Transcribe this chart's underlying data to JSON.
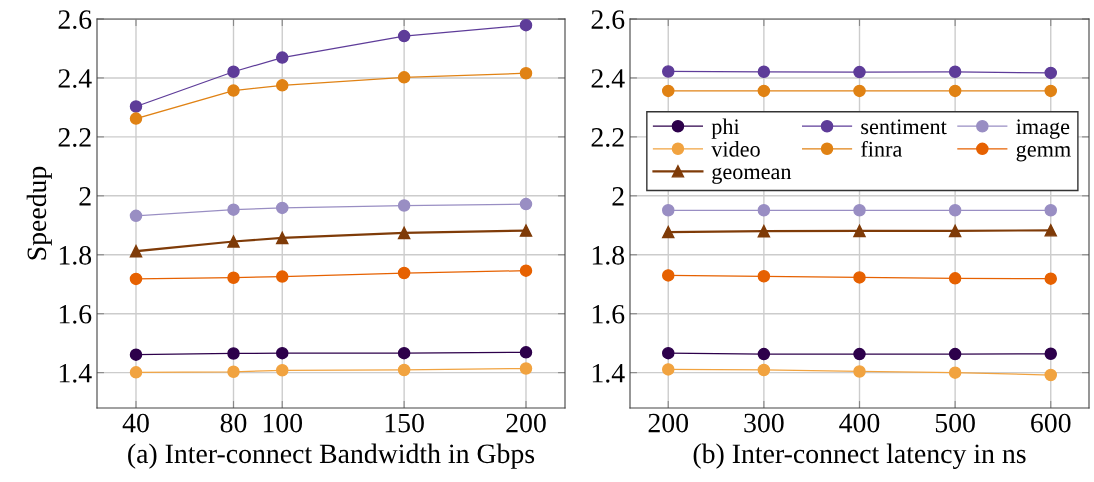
{
  "chart_data": [
    {
      "type": "line",
      "xlabel": "(a) Inter-connect Bandwidth in Gbps",
      "ylabel": "Speedup",
      "x": [
        40,
        80,
        100,
        150,
        200
      ],
      "xlim": [
        24,
        216
      ],
      "xticks": [
        40,
        80,
        100,
        150,
        200
      ],
      "ylim": [
        1.28,
        2.6
      ],
      "yticks": [
        1.4,
        1.6,
        1.8,
        2,
        2.2,
        2.4,
        2.6
      ],
      "grid": true,
      "series": [
        {
          "color": "#2d004b",
          "marker": "circle",
          "values": [
            1.461,
            1.465,
            1.466,
            1.466,
            1.469
          ]
        },
        {
          "color": "#5e3c99",
          "marker": "circle",
          "values": [
            2.303,
            2.421,
            2.469,
            2.542,
            2.579
          ]
        },
        {
          "color": "#998ec3",
          "marker": "circle",
          "values": [
            1.932,
            1.953,
            1.959,
            1.967,
            1.972
          ]
        },
        {
          "color": "#f1a340",
          "marker": "circle",
          "values": [
            1.401,
            1.403,
            1.408,
            1.409,
            1.414
          ]
        },
        {
          "color": "#e08214",
          "marker": "circle",
          "values": [
            2.262,
            2.357,
            2.375,
            2.402,
            2.416
          ]
        },
        {
          "color": "#e66101",
          "marker": "circle",
          "values": [
            1.718,
            1.722,
            1.726,
            1.738,
            1.746
          ]
        },
        {
          "color": "#7f3b08",
          "marker": "triangle",
          "values": [
            1.812,
            1.845,
            1.857,
            1.874,
            1.882
          ]
        }
      ]
    },
    {
      "type": "line",
      "xlabel": "(b) Inter-connect latency in ns",
      "x": [
        200,
        300,
        400,
        500,
        600
      ],
      "xlim": [
        160,
        640
      ],
      "xticks": [
        200,
        300,
        400,
        500,
        600
      ],
      "ylim": [
        1.28,
        2.6
      ],
      "yticks": [
        1.4,
        1.6,
        1.8,
        2,
        2.2,
        2.4,
        2.6
      ],
      "grid": true,
      "legend": "top right",
      "series": [
        {
          "name": "phi",
          "color": "#2d004b",
          "marker": "circle",
          "values": [
            1.466,
            1.463,
            1.463,
            1.463,
            1.464
          ]
        },
        {
          "name": "sentiment",
          "color": "#5e3c99",
          "marker": "circle",
          "values": [
            2.422,
            2.421,
            2.42,
            2.421,
            2.417
          ]
        },
        {
          "name": "image",
          "color": "#998ec3",
          "marker": "circle",
          "values": [
            1.951,
            1.951,
            1.951,
            1.951,
            1.951
          ]
        },
        {
          "name": "video",
          "color": "#f1a340",
          "marker": "circle",
          "values": [
            1.411,
            1.409,
            1.404,
            1.4,
            1.392
          ]
        },
        {
          "name": "finra",
          "color": "#e08214",
          "marker": "circle",
          "values": [
            2.356,
            2.356,
            2.356,
            2.356,
            2.356
          ]
        },
        {
          "name": "gemm",
          "color": "#e66101",
          "marker": "circle",
          "values": [
            1.73,
            1.727,
            1.723,
            1.72,
            1.719
          ]
        },
        {
          "name": "geomean",
          "color": "#7f3b08",
          "marker": "triangle",
          "values": [
            1.877,
            1.88,
            1.881,
            1.881,
            1.883
          ]
        }
      ]
    }
  ]
}
